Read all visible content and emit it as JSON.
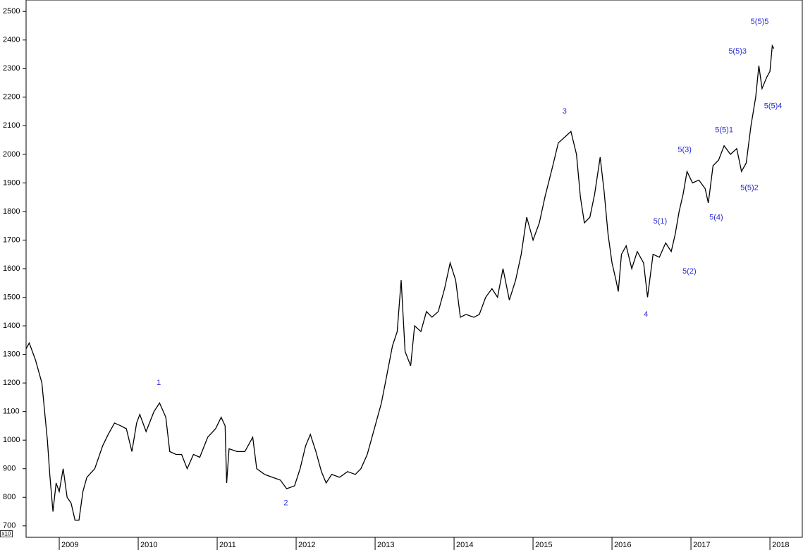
{
  "chart_data": {
    "type": "line",
    "y_unit_label": "x10",
    "xlim": [
      2008.58,
      2018.41
    ],
    "ylim": [
      660,
      2540
    ],
    "xticks": [
      2009,
      2010,
      2011,
      2012,
      2013,
      2014,
      2015,
      2016,
      2017,
      2018
    ],
    "yticks": [
      700,
      800,
      900,
      1000,
      1100,
      1200,
      1300,
      1400,
      1500,
      1600,
      1700,
      1800,
      1900,
      2000,
      2100,
      2200,
      2300,
      2400,
      2500
    ],
    "series": [
      {
        "color": "#000000",
        "x": [
          2008.58,
          2008.62,
          2008.7,
          2008.78,
          2008.85,
          2008.88,
          2008.92,
          2008.96,
          2009.0,
          2009.05,
          2009.1,
          2009.15,
          2009.2,
          2009.25,
          2009.3,
          2009.35,
          2009.45,
          2009.55,
          2009.62,
          2009.7,
          2009.78,
          2009.85,
          2009.92,
          2009.98,
          2010.02,
          2010.1,
          2010.2,
          2010.27,
          2010.35,
          2010.4,
          2010.48,
          2010.55,
          2010.62,
          2010.7,
          2010.78,
          2010.88,
          2010.98,
          2011.05,
          2011.1,
          2011.12,
          2011.15,
          2011.25,
          2011.35,
          2011.45,
          2011.5,
          2011.6,
          2011.7,
          2011.8,
          2011.88,
          2011.98,
          2012.05,
          2012.12,
          2012.18,
          2012.25,
          2012.32,
          2012.38,
          2012.45,
          2012.55,
          2012.65,
          2012.75,
          2012.82,
          2012.9,
          2013.0,
          2013.08,
          2013.15,
          2013.22,
          2013.28,
          2013.33,
          2013.38,
          2013.45,
          2013.5,
          2013.58,
          2013.65,
          2013.72,
          2013.8,
          2013.88,
          2013.95,
          2014.02,
          2014.08,
          2014.15,
          2014.25,
          2014.32,
          2014.4,
          2014.48,
          2014.55,
          2014.62,
          2014.7,
          2014.78,
          2014.85,
          2014.92,
          2015.0,
          2015.08,
          2015.15,
          2015.25,
          2015.32,
          2015.4,
          2015.48,
          2015.55,
          2015.6,
          2015.65,
          2015.72,
          2015.78,
          2015.85,
          2015.9,
          2015.95,
          2016.0,
          2016.05,
          2016.08,
          2016.12,
          2016.18,
          2016.25,
          2016.32,
          2016.4,
          2016.45,
          2016.52,
          2016.6,
          2016.68,
          2016.75,
          2016.8,
          2016.85,
          2016.9,
          2016.95,
          2017.02,
          2017.1,
          2017.18,
          2017.22,
          2017.28,
          2017.35,
          2017.42,
          2017.5,
          2017.58,
          2017.64,
          2017.7,
          2017.76,
          2017.82,
          2017.86,
          2017.9,
          2017.96,
          2018.0,
          2018.03,
          2018.05
        ],
        "values": [
          1320,
          1340,
          1280,
          1200,
          1000,
          880,
          750,
          850,
          820,
          900,
          800,
          780,
          720,
          720,
          820,
          870,
          900,
          980,
          1020,
          1060,
          1050,
          1040,
          960,
          1060,
          1090,
          1030,
          1100,
          1130,
          1080,
          960,
          950,
          950,
          900,
          950,
          940,
          1010,
          1040,
          1080,
          1050,
          850,
          970,
          960,
          960,
          1010,
          900,
          880,
          870,
          860,
          830,
          840,
          900,
          980,
          1020,
          960,
          890,
          850,
          880,
          870,
          890,
          880,
          900,
          950,
          1050,
          1130,
          1230,
          1330,
          1380,
          1560,
          1310,
          1260,
          1400,
          1380,
          1450,
          1430,
          1450,
          1530,
          1620,
          1560,
          1430,
          1440,
          1430,
          1440,
          1500,
          1530,
          1500,
          1600,
          1490,
          1560,
          1650,
          1780,
          1700,
          1760,
          1850,
          1960,
          2040,
          2060,
          2080,
          2000,
          1850,
          1760,
          1780,
          1860,
          1990,
          1870,
          1720,
          1620,
          1560,
          1520,
          1650,
          1680,
          1600,
          1660,
          1620,
          1500,
          1650,
          1640,
          1690,
          1660,
          1720,
          1800,
          1860,
          1940,
          1900,
          1910,
          1880,
          1830,
          1960,
          1980,
          2030,
          2000,
          2020,
          1940,
          1970,
          2100,
          2200,
          2310,
          2230,
          2270,
          2290,
          2380,
          2370
        ]
      }
    ],
    "annotations": [
      {
        "text": "1",
        "x": 2010.26,
        "y": 1200
      },
      {
        "text": "2",
        "x": 2011.87,
        "y": 780
      },
      {
        "text": "3",
        "x": 2015.4,
        "y": 2150
      },
      {
        "text": "4",
        "x": 2016.43,
        "y": 1440
      },
      {
        "text": "5(1)",
        "x": 2016.61,
        "y": 1765
      },
      {
        "text": "5(2)",
        "x": 2016.98,
        "y": 1590
      },
      {
        "text": "5(3)",
        "x": 2016.92,
        "y": 2015
      },
      {
        "text": "5(4)",
        "x": 2017.32,
        "y": 1779
      },
      {
        "text": "5(5)1",
        "x": 2017.42,
        "y": 2084
      },
      {
        "text": "5(5)2",
        "x": 2017.74,
        "y": 1882
      },
      {
        "text": "5(5)3",
        "x": 2017.59,
        "y": 2360
      },
      {
        "text": "5(5)4",
        "x": 2018.04,
        "y": 2168
      },
      {
        "text": "5(5)5",
        "x": 2017.87,
        "y": 2463
      }
    ]
  }
}
